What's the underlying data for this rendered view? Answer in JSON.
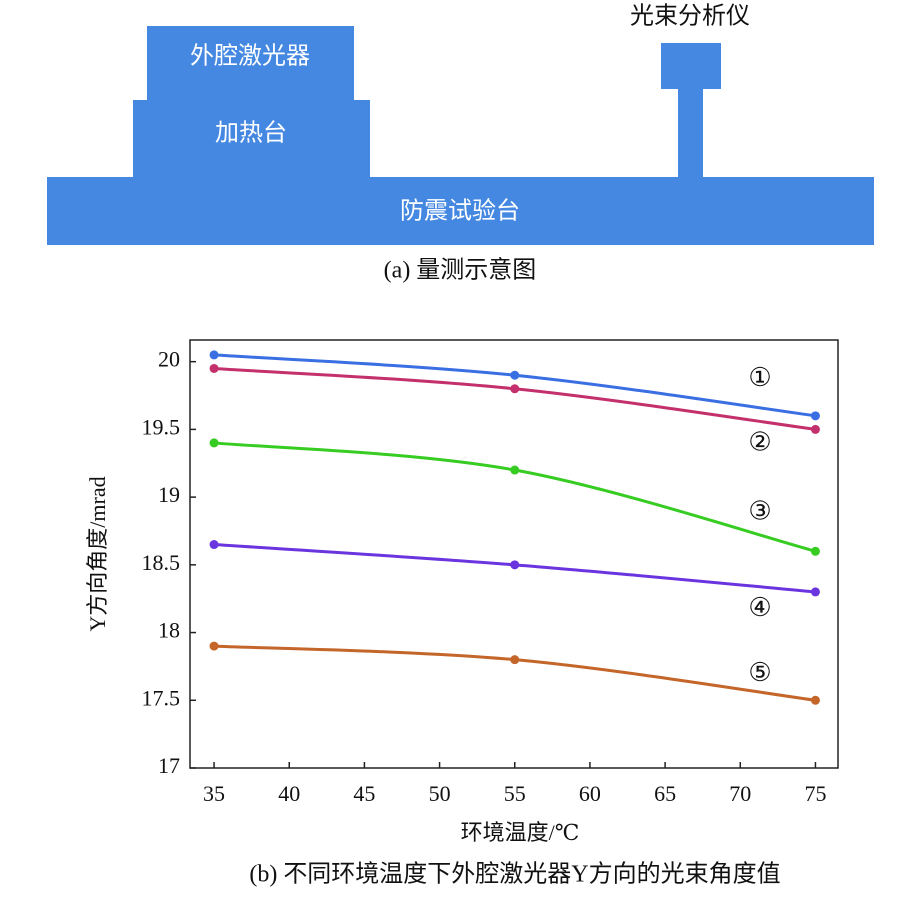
{
  "diagram": {
    "laser": "外腔激光器",
    "heater": "加热台",
    "table": "防震试验台",
    "analyzer": "光束分析仪",
    "caption": "(a) 量测示意图"
  },
  "chart_data": {
    "type": "line",
    "caption": "(b) 不同环境温度下外腔激光器Y方向的光束角度值",
    "x_label": "环境温度/℃",
    "y_label": "Y方向角度/mrad",
    "x": [
      35,
      55,
      75
    ],
    "series": [
      {
        "name": "①",
        "color": "#3a6fe3",
        "values": [
          20.05,
          19.9,
          19.6
        ]
      },
      {
        "name": "②",
        "color": "#c4306c",
        "values": [
          19.95,
          19.8,
          19.5
        ]
      },
      {
        "name": "③",
        "color": "#36cc22",
        "values": [
          19.4,
          19.2,
          18.6
        ]
      },
      {
        "name": "④",
        "color": "#6a35df",
        "values": [
          18.65,
          18.5,
          18.3
        ]
      },
      {
        "name": "⑤",
        "color": "#c4662a",
        "values": [
          17.9,
          17.8,
          17.5
        ]
      }
    ],
    "xlim": [
      33.4,
      76.5
    ],
    "xticks": [
      35,
      40,
      45,
      50,
      55,
      60,
      65,
      70,
      75
    ],
    "ylim": [
      17,
      20.16
    ],
    "yticks": [
      17,
      17.5,
      18,
      18.5,
      19,
      19.5,
      20
    ]
  }
}
